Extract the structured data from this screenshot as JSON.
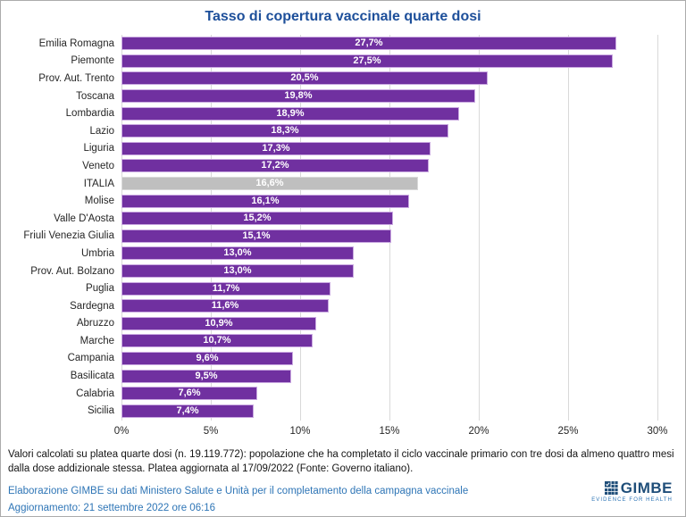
{
  "title": "Tasso di copertura vaccinale quarte dosi",
  "chart_data": {
    "type": "bar",
    "orientation": "horizontal",
    "title": "Tasso di copertura vaccinale quarte dosi",
    "categories": [
      "Emilia Romagna",
      "Piemonte",
      "Prov. Aut. Trento",
      "Toscana",
      "Lombardia",
      "Lazio",
      "Liguria",
      "Veneto",
      "ITALIA",
      "Molise",
      "Valle D'Aosta",
      "Friuli Venezia Giulia",
      "Umbria",
      "Prov. Aut. Bolzano",
      "Puglia",
      "Sardegna",
      "Abruzzo",
      "Marche",
      "Campania",
      "Basilicata",
      "Calabria",
      "Sicilia"
    ],
    "values": [
      27.7,
      27.5,
      20.5,
      19.8,
      18.9,
      18.3,
      17.3,
      17.2,
      16.6,
      16.1,
      15.2,
      15.1,
      13.0,
      13.0,
      11.7,
      11.6,
      10.9,
      10.7,
      9.6,
      9.5,
      7.6,
      7.4
    ],
    "value_labels": [
      "27,7%",
      "27,5%",
      "20,5%",
      "19,8%",
      "18,9%",
      "18,3%",
      "17,3%",
      "17,2%",
      "16,6%",
      "16,1%",
      "15,2%",
      "15,1%",
      "13,0%",
      "13,0%",
      "11,7%",
      "11,6%",
      "10,9%",
      "10,7%",
      "9,6%",
      "9,5%",
      "7,6%",
      "7,4%"
    ],
    "highlight_category": "ITALIA",
    "bar_color": "#7030a0",
    "bar_border_color": "#c9a8e0",
    "highlight_color": "#bfbfbf",
    "highlight_border_color": "#d9d9d9",
    "xlabel": "",
    "ylabel": "",
    "xlim": [
      0,
      30
    ],
    "x_tick_values": [
      0,
      5,
      10,
      15,
      20,
      25,
      30
    ],
    "x_ticks": [
      "0%",
      "5%",
      "10%",
      "15%",
      "20%",
      "25%",
      "30%"
    ],
    "grid": true,
    "gridline_color": "#d9d9d9",
    "value_label_color": "#ffffff"
  },
  "footnote": "Valori calcolati su platea quarte dosi (n. 19.119.772): popolazione che ha completato il ciclo vaccinale primario con tre dosi da almeno quattro mesi dalla dose addizionale stessa. Platea aggiornata al 17/09/2022 (Fonte: Governo italiano).",
  "credits": {
    "line1": "Elaborazione GIMBE su dati Ministero Salute e Unità per il completamento della campagna vaccinale",
    "line2": "Aggiornamento: 21 settembre 2022 ore 06:16",
    "color": "#2e75b6"
  },
  "logo": {
    "name": "GIMBE",
    "tagline": "EVIDENCE FOR HEALTH",
    "name_color": "#1f4e79",
    "tagline_color": "#2e75b6"
  },
  "colors": {
    "title": "#1d4f9a",
    "frame_border": "#ababab"
  }
}
